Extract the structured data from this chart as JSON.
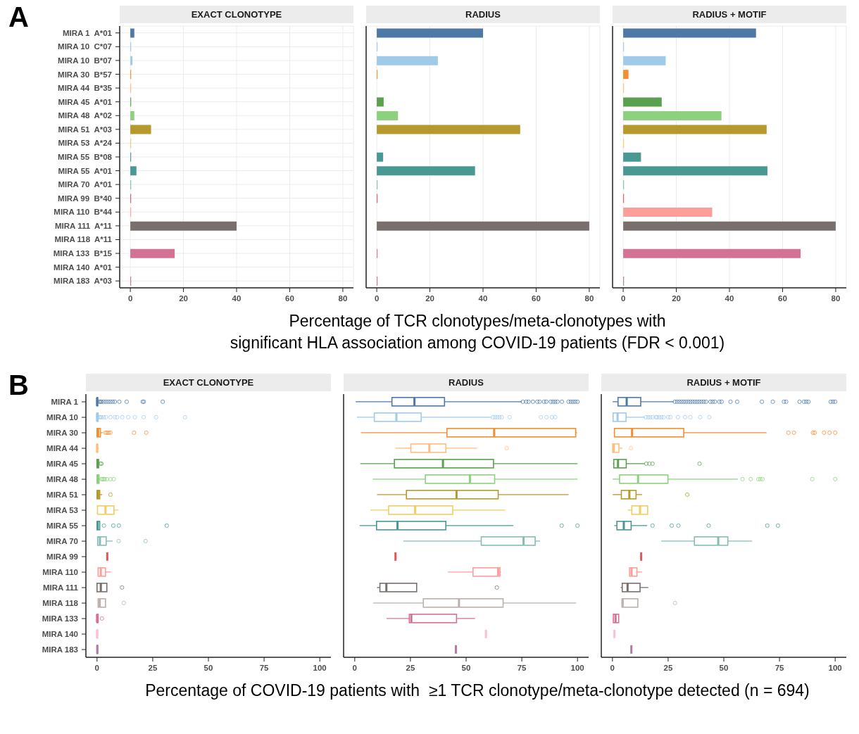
{
  "chart_data": [
    {
      "type": "bar",
      "orientation": "horizontal",
      "title": "EXACT CLONOTYPE",
      "annotations": [
        "A"
      ],
      "grid": true,
      "categories": [
        "MIRA 1  A*01",
        "MIRA 10  C*07",
        "MIRA 10  B*07",
        "MIRA 30  B*57",
        "MIRA 44  B*35",
        "MIRA 45  A*01",
        "MIRA 48  A*02",
        "MIRA 51  A*03",
        "MIRA 53  A*24",
        "MIRA 55  B*08",
        "MIRA 55  A*01",
        "MIRA 70  A*01",
        "MIRA 99  B*40",
        "MIRA 110  B*44",
        "MIRA 111  A*11",
        "MIRA 118  A*11",
        "MIRA 133  B*15",
        "MIRA 140  A*01",
        "MIRA 183  A*03"
      ],
      "values": [
        1.5,
        0.3,
        0.8,
        0.3,
        0.3,
        0.3,
        1.5,
        7.8,
        0.3,
        0.3,
        2.3,
        0.3,
        0.3,
        0.3,
        40,
        null,
        16.7,
        null,
        0.3
      ],
      "colors": [
        "#4e79a7",
        "#a0cbe8",
        "#a0cbe8",
        "#f28e2b",
        "#ffbe7d",
        "#59a14f",
        "#8cd17d",
        "#b6992d",
        "#f1ce63",
        "#499894",
        "#499894",
        "#86bcb6",
        "#e15759",
        "#ff9d9a",
        "#79706e",
        "#bab0ac",
        "#d37295",
        "#fabfd2",
        "#b07aa1"
      ],
      "xlim": [
        -4,
        84
      ],
      "xticks": [
        0,
        20,
        40,
        60,
        80
      ]
    },
    {
      "type": "bar",
      "orientation": "horizontal",
      "title": "RADIUS",
      "tick_labels": "x",
      "grid": true,
      "xlabel": "Percentage of TCR clonotypes/meta-clonotypes with\nsignificant HLA association among COVID-19 patients (FDR < 0.001)",
      "categories": [
        null,
        null,
        null,
        null,
        null,
        null,
        null,
        null,
        null,
        null,
        null,
        null,
        null,
        null,
        null,
        null,
        null,
        null,
        null
      ],
      "values": [
        40,
        0.3,
        23,
        0.3,
        0,
        2.6,
        8,
        54,
        0,
        2.4,
        37,
        0.3,
        0.3,
        0,
        80,
        0,
        0.3,
        0,
        0.3
      ],
      "colors": [
        "#4e79a7",
        "#a0cbe8",
        "#a0cbe8",
        "#f28e2b",
        "#ffbe7d",
        "#59a14f",
        "#8cd17d",
        "#b6992d",
        "#f1ce63",
        "#499894",
        "#499894",
        "#86bcb6",
        "#e15759",
        "#ff9d9a",
        "#79706e",
        "#bab0ac",
        "#d37295",
        "#fabfd2",
        "#b07aa1"
      ],
      "xlim": [
        -4,
        84
      ],
      "xticks": [
        0,
        20,
        40,
        60,
        80
      ]
    },
    {
      "type": "bar",
      "orientation": "horizontal",
      "title": "RADIUS + MOTIF",
      "tick_labels": "x",
      "grid": true,
      "categories": [
        null,
        null,
        null,
        null,
        null,
        null,
        null,
        null,
        null,
        null,
        null,
        null,
        null,
        null,
        null,
        null,
        null,
        null,
        null
      ],
      "values": [
        50,
        0.3,
        16,
        2,
        0.3,
        14.5,
        37,
        54,
        0.3,
        6.7,
        54.3,
        0.3,
        0.3,
        33.5,
        80,
        null,
        66.8,
        null,
        0.3
      ],
      "colors": [
        "#4e79a7",
        "#a0cbe8",
        "#a0cbe8",
        "#f28e2b",
        "#ffbe7d",
        "#59a14f",
        "#8cd17d",
        "#b6992d",
        "#f1ce63",
        "#499894",
        "#499894",
        "#86bcb6",
        "#e15759",
        "#ff9d9a",
        "#79706e",
        "#bab0ac",
        "#d37295",
        "#fabfd2",
        "#b07aa1"
      ],
      "xlim": [
        -4,
        84
      ],
      "xticks": [
        0,
        20,
        40,
        60,
        80
      ]
    },
    {
      "type": "box",
      "orientation": "horizontal",
      "title": "EXACT CLONOTYPE",
      "annotations": [
        "B"
      ],
      "categories": [
        "MIRA 1",
        "MIRA 10",
        "MIRA 30",
        "MIRA 44",
        "MIRA 45",
        "MIRA 48",
        "MIRA 51",
        "MIRA 53",
        "MIRA 55",
        "MIRA 70",
        "MIRA 99",
        "MIRA 110",
        "MIRA 111",
        "MIRA 118",
        "MIRA 133",
        "MIRA 140",
        "MIRA 183"
      ],
      "colors": [
        "#4e79a7",
        "#a0cbe8",
        "#f28e2b",
        "#ffbe7d",
        "#59a14f",
        "#8cd17d",
        "#b6992d",
        "#f1ce63",
        "#499894",
        "#86bcb6",
        "#e15759",
        "#ff9d9a",
        "#79706e",
        "#bab0ac",
        "#d37295",
        "#fabfd2",
        "#b07aa1"
      ],
      "boxes": [
        {
          "low": 0,
          "q1": 0,
          "median": 0,
          "q3": 0.3,
          "high": 0.8,
          "outliers": [
            1,
            1.5,
            2,
            3,
            4,
            5,
            6,
            7,
            8,
            10,
            13.3,
            20.5,
            21,
            29.5
          ]
        },
        {
          "low": 0,
          "q1": 0,
          "median": 0,
          "q3": 0.5,
          "high": 0.8,
          "outliers": [
            1,
            1.5,
            2,
            3,
            4,
            6,
            8,
            9,
            11.3,
            14,
            17,
            21,
            26.5,
            39.5
          ]
        },
        {
          "low": 0,
          "q1": 0,
          "median": 0.5,
          "q3": 1.5,
          "high": 2.5,
          "outliers": [
            3.8,
            4.5,
            5.2,
            6,
            16.6,
            22.1
          ]
        },
        {
          "low": 0,
          "q1": 0,
          "median": 0,
          "q3": 0.3,
          "high": 0.8
        },
        {
          "low": 0,
          "q1": 0,
          "median": 0.2,
          "q3": 0.7,
          "high": 1,
          "outliers": [
            1.5,
            2
          ]
        },
        {
          "low": 0,
          "q1": 0,
          "median": 0.3,
          "q3": 0.9,
          "high": 1.3,
          "outliers": [
            2,
            2.5,
            3,
            3.5,
            4.5,
            6,
            7.5
          ]
        },
        {
          "low": 0,
          "q1": 0,
          "median": 0.5,
          "q3": 1.2,
          "high": 2.3,
          "outliers": [
            6
          ]
        },
        {
          "low": 0.2,
          "q1": 0.2,
          "median": 3.8,
          "q3": 7.6,
          "high": 9.7
        },
        {
          "low": 0,
          "q1": 0,
          "median": 0.3,
          "q3": 1.2,
          "high": 1.3,
          "outliers": [
            3.1,
            7.3,
            9.8,
            31.3
          ]
        },
        {
          "low": 0.3,
          "q1": 0.3,
          "median": 1.3,
          "q3": 4.1,
          "high": 7,
          "outliers": [
            9.7,
            21.8
          ]
        },
        {
          "low": 4.6,
          "q1": 4.6,
          "median": 4.6,
          "q3": 4.6,
          "high": 4.6
        },
        {
          "low": 0.3,
          "q1": 0.5,
          "median": 1.7,
          "q3": 3.8,
          "high": 6.2
        },
        {
          "low": 0,
          "q1": 0,
          "median": 1.7,
          "q3": 4.4,
          "high": 4.4,
          "outliers": [
            11.2
          ]
        },
        {
          "low": 0.5,
          "q1": 0.5,
          "median": 1.2,
          "q3": 3.8,
          "high": 3.8,
          "outliers": [
            12
          ]
        },
        {
          "low": 0,
          "q1": 0,
          "median": 0,
          "q3": 0.5,
          "high": 0.5,
          "outliers": [
            2.2
          ]
        },
        {
          "low": 0,
          "q1": 0,
          "median": 0,
          "q3": 0.3,
          "high": 0.3
        },
        {
          "low": 0,
          "q1": 0,
          "median": 0.1,
          "q3": 0.3,
          "high": 0.3
        }
      ],
      "xlim": [
        -5,
        105
      ],
      "xticks": [
        0,
        25,
        50,
        75,
        100
      ]
    },
    {
      "type": "box",
      "orientation": "horizontal",
      "title": "RADIUS",
      "tick_labels": "x",
      "xlabel": "Percentage of COVID-19 patients with  ≥1 TCR clonotype/meta-clonotype detected (n = 694)",
      "categories": [
        null,
        null,
        null,
        null,
        null,
        null,
        null,
        null,
        null,
        null,
        null,
        null,
        null,
        null,
        null,
        null,
        null
      ],
      "colors": [
        "#4e79a7",
        "#a0cbe8",
        "#f28e2b",
        "#ffbe7d",
        "#59a14f",
        "#8cd17d",
        "#b6992d",
        "#f1ce63",
        "#499894",
        "#86bcb6",
        "#e15759",
        "#ff9d9a",
        "#79706e",
        "#bab0ac",
        "#d37295",
        "#fabfd2",
        "#b07aa1"
      ],
      "boxes": [
        {
          "low": 0.4,
          "q1": 16.7,
          "median": 26.8,
          "q3": 40.3,
          "high": 75,
          "outliers": [
            75.5,
            77,
            78,
            80,
            82,
            83,
            85,
            86,
            88,
            89,
            90,
            91,
            93,
            96,
            97,
            98,
            99,
            100
          ]
        },
        {
          "low": 1,
          "q1": 8.8,
          "median": 18.7,
          "q3": 29.8,
          "high": 61,
          "outliers": [
            62,
            63,
            64,
            65,
            66,
            69.5,
            83.6,
            86.1,
            88.5,
            90
          ]
        },
        {
          "low": 2.8,
          "q1": 41.4,
          "median": 62.6,
          "q3": 99.2,
          "high": 99.8
        },
        {
          "low": 18.2,
          "q1": 25.2,
          "median": 33.5,
          "q3": 40.9,
          "high": 55,
          "outliers": [
            68.2
          ]
        },
        {
          "low": 2.5,
          "q1": 17.8,
          "median": 39.6,
          "q3": 62.3,
          "high": 100
        },
        {
          "low": 8.1,
          "q1": 31.7,
          "median": 51.7,
          "q3": 62.8,
          "high": 100
        },
        {
          "low": 10,
          "q1": 23.2,
          "median": 45.7,
          "q3": 64.4,
          "high": 96
        },
        {
          "low": 7,
          "q1": 15.2,
          "median": 27.1,
          "q3": 44,
          "high": 67.6
        },
        {
          "low": 2.2,
          "q1": 9.8,
          "median": 19.2,
          "q3": 40.9,
          "high": 71.2,
          "outliers": [
            92.9,
            100
          ]
        },
        {
          "low": 21.8,
          "q1": 56.8,
          "median": 75.8,
          "q3": 81,
          "high": 83.2
        },
        {
          "low": 18.3,
          "q1": 18.3,
          "median": 18.3,
          "q3": 18.3,
          "high": 18.3
        },
        {
          "low": 41.8,
          "q1": 53.1,
          "median": 64.4,
          "q3": 65.2,
          "high": 65.7
        },
        {
          "low": 10,
          "q1": 11.3,
          "median": 14.2,
          "q3": 27.8,
          "high": 27.8,
          "outliers": [
            63.8
          ]
        },
        {
          "low": 8.3,
          "q1": 30.8,
          "median": 46.8,
          "q3": 66.6,
          "high": 99.4
        },
        {
          "low": 14.3,
          "q1": 24.5,
          "median": 25.4,
          "q3": 45.7,
          "high": 54
        },
        {
          "low": 58.9,
          "q1": 58.9,
          "median": 58.9,
          "q3": 58.9,
          "high": 58.9
        },
        {
          "low": 45.4,
          "q1": 45.4,
          "median": 45.4,
          "q3": 45.4,
          "high": 45.4
        }
      ],
      "xlim": [
        -5,
        105
      ],
      "xticks": [
        0,
        25,
        50,
        75,
        100
      ]
    },
    {
      "type": "box",
      "orientation": "horizontal",
      "title": "RADIUS + MOTIF",
      "tick_labels": "x",
      "categories": [
        null,
        null,
        null,
        null,
        null,
        null,
        null,
        null,
        null,
        null,
        null,
        null,
        null,
        null,
        null,
        null,
        null
      ],
      "colors": [
        "#4e79a7",
        "#a0cbe8",
        "#f28e2b",
        "#ffbe7d",
        "#59a14f",
        "#8cd17d",
        "#b6992d",
        "#f1ce63",
        "#499894",
        "#86bcb6",
        "#e15759",
        "#ff9d9a",
        "#79706e",
        "#bab0ac",
        "#d37295",
        "#fabfd2",
        "#b07aa1"
      ],
      "boxes": [
        {
          "low": 0.1,
          "q1": 2.5,
          "median": 6.4,
          "q3": 12.7,
          "high": 27.5,
          "outliers": [
            28,
            29,
            30,
            31,
            32,
            33,
            34,
            35,
            36,
            37,
            38,
            39,
            40,
            41,
            42,
            44,
            45,
            46,
            48,
            49,
            53,
            56,
            67.1,
            72,
            77,
            78,
            84,
            86,
            87,
            88,
            98,
            99,
            100
          ]
        },
        {
          "low": 0.3,
          "q1": 0.3,
          "median": 2.3,
          "q3": 6.1,
          "high": 14.5,
          "outliers": [
            15,
            16,
            17,
            18,
            19.5,
            20,
            21,
            22,
            23,
            25,
            26,
            29.4,
            32.6,
            35,
            39.4,
            43.5
          ]
        },
        {
          "low": 0.6,
          "q1": 0.9,
          "median": 8.8,
          "q3": 32,
          "high": 69.2,
          "outliers": [
            79,
            81.5,
            90,
            90.8,
            95,
            97.5,
            100
          ]
        },
        {
          "low": 0.1,
          "q1": 0.1,
          "median": 0.6,
          "q3": 2.9,
          "high": 4.5,
          "outliers": [
            8.3
          ]
        },
        {
          "low": 0.2,
          "q1": 0.6,
          "median": 2.5,
          "q3": 6.2,
          "high": 14.5,
          "outliers": [
            15.2,
            16.6,
            18,
            39.1
          ]
        },
        {
          "low": 0.1,
          "q1": 3.2,
          "median": 11.5,
          "q3": 24.9,
          "high": 56.3,
          "outliers": [
            58.4,
            62.1,
            65.5,
            66.4,
            67.4,
            89.7,
            100
          ]
        },
        {
          "low": 0.1,
          "q1": 4,
          "median": 7.6,
          "q3": 10.6,
          "high": 13.3,
          "outliers": [
            33.6
          ]
        },
        {
          "low": 6.9,
          "q1": 8.7,
          "median": 12.4,
          "q3": 15.8,
          "high": 16.1
        },
        {
          "low": 0.8,
          "q1": 2,
          "median": 5.1,
          "q3": 8.4,
          "high": 15.6,
          "outliers": [
            18,
            26.6,
            29.6,
            43.2,
            69.5,
            74.3
          ]
        },
        {
          "low": 21.9,
          "q1": 36.8,
          "median": 47.5,
          "q3": 51.8,
          "high": 62.7
        },
        {
          "low": 12.9,
          "q1": 12.9,
          "median": 12.9,
          "q3": 12.9,
          "high": 12.9
        },
        {
          "low": 7.7,
          "q1": 7.7,
          "median": 8.6,
          "q3": 11,
          "high": 13.3
        },
        {
          "low": 3.7,
          "q1": 4.4,
          "median": 6.8,
          "q3": 12.4,
          "high": 16.1
        },
        {
          "low": 4.3,
          "q1": 4.3,
          "median": 4.6,
          "q3": 11.4,
          "high": 11.4,
          "outliers": [
            28.1
          ]
        },
        {
          "low": 0.2,
          "q1": 0.4,
          "median": 1.4,
          "q3": 2.8,
          "high": 2.8
        },
        {
          "low": 0.9,
          "q1": 0.9,
          "median": 0.9,
          "q3": 0.9,
          "high": 0.9
        },
        {
          "low": 8.5,
          "q1": 8.5,
          "median": 8.5,
          "q3": 8.5,
          "high": 8.5
        }
      ],
      "xlim": [
        -5,
        105
      ],
      "xticks": [
        0,
        25,
        50,
        75,
        100
      ]
    }
  ]
}
